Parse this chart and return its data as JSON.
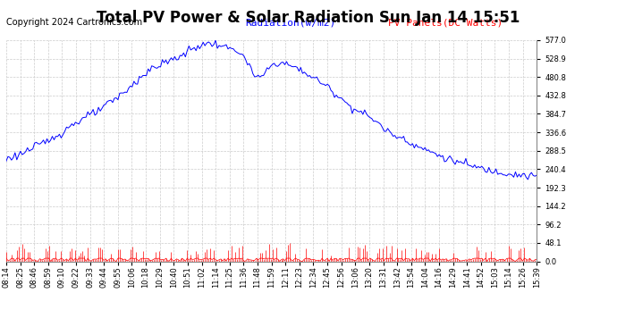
{
  "title": "Total PV Power & Solar Radiation Sun Jan 14 15:51",
  "copyright": "Copyright 2024 Cartronics.com",
  "legend_radiation": "Radiation(w/m2)",
  "legend_pv": "PV Panels(DC Watts)",
  "radiation_color": "blue",
  "pv_color": "red",
  "ymin": 0.0,
  "ymax": 577.0,
  "yticks": [
    0.0,
    48.1,
    96.2,
    144.2,
    192.3,
    240.4,
    288.5,
    336.6,
    384.7,
    432.8,
    480.8,
    528.9,
    577.0
  ],
  "xtick_labels": [
    "08:14",
    "08:25",
    "08:46",
    "08:59",
    "09:10",
    "09:22",
    "09:33",
    "09:44",
    "09:55",
    "10:06",
    "10:18",
    "10:29",
    "10:40",
    "10:51",
    "11:02",
    "11:14",
    "11:25",
    "11:36",
    "11:48",
    "11:59",
    "12:11",
    "12:23",
    "12:34",
    "12:45",
    "12:56",
    "13:06",
    "13:20",
    "13:31",
    "13:42",
    "13:54",
    "14:04",
    "14:16",
    "14:29",
    "14:41",
    "14:52",
    "15:03",
    "15:14",
    "15:26",
    "15:39"
  ],
  "background_color": "#ffffff",
  "grid_color": "#cccccc",
  "title_fontsize": 12,
  "copyright_fontsize": 7,
  "legend_fontsize": 8,
  "tick_fontsize": 6
}
